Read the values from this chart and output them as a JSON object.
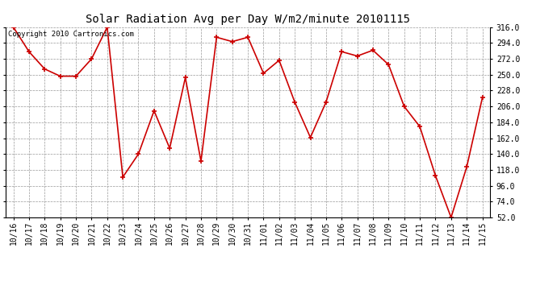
{
  "title": "Solar Radiation Avg per Day W/m2/minute 20101115",
  "copyright": "Copyright 2010 Cartronics.com",
  "dates": [
    "10/16",
    "10/17",
    "10/18",
    "10/19",
    "10/20",
    "10/21",
    "10/22",
    "10/23",
    "10/24",
    "10/25",
    "10/26",
    "10/27",
    "10/28",
    "10/29",
    "10/30",
    "10/31",
    "11/01",
    "11/02",
    "11/03",
    "11/04",
    "11/05",
    "11/06",
    "11/07",
    "11/08",
    "11/09",
    "11/10",
    "11/11",
    "11/12",
    "11/13",
    "11/14",
    "11/15"
  ],
  "values": [
    316,
    282,
    258,
    248,
    248,
    272,
    316,
    108,
    140,
    200,
    148,
    246,
    130,
    302,
    296,
    302,
    252,
    270,
    212,
    163,
    212,
    282,
    276,
    284,
    264,
    206,
    178,
    110,
    52,
    122,
    218
  ],
  "ylim_min": 52.0,
  "ylim_max": 316.0,
  "yticks": [
    52.0,
    74.0,
    96.0,
    118.0,
    140.0,
    162.0,
    184.0,
    206.0,
    228.0,
    250.0,
    272.0,
    294.0,
    316.0
  ],
  "line_color": "#cc0000",
  "marker": "+",
  "bg_color": "#ffffff",
  "grid_color": "#999999",
  "title_fontsize": 10,
  "copyright_fontsize": 6.5,
  "tick_fontsize": 7
}
